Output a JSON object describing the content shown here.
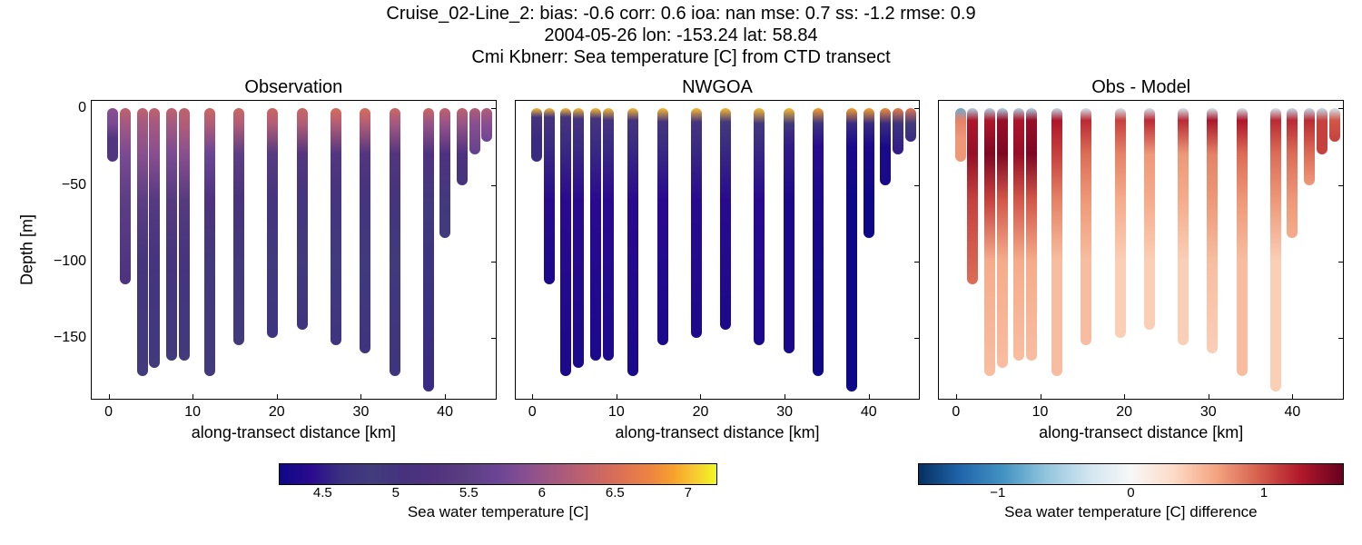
{
  "title": {
    "line1": "Cruise_02-Line_2: bias: -0.6  corr: 0.6  ioa: nan  mse: 0.7  ss: -1.2  rmse: 0.9",
    "line2": "2004-05-26 lon: -153.24 lat: 58.84",
    "line3": "Cmi Kbnerr: Sea temperature [C] from CTD transect",
    "fontsize": 20,
    "color": "#000000"
  },
  "ylabel": "Depth [m]",
  "xlabel": "along-transect distance [km]",
  "label_fontsize": 18,
  "tick_fontsize": 16,
  "xlim": [
    -2,
    46
  ],
  "ylim": [
    -190,
    5
  ],
  "xticks": [
    0,
    10,
    20,
    30,
    40
  ],
  "yticks": [
    0,
    -50,
    -100,
    -150
  ],
  "background_color": "#ffffff",
  "border_color": "#000000",
  "panels": [
    {
      "title": "Observation",
      "show_yticks": true,
      "data": "obs",
      "cmap": "viridis"
    },
    {
      "title": "NWGOA",
      "show_yticks": false,
      "data": "model",
      "cmap": "viridis"
    },
    {
      "title": "Obs - Model",
      "show_yticks": false,
      "data": "diff",
      "cmap": "rdbu"
    }
  ],
  "viridis": {
    "min": 4.2,
    "max": 7.2,
    "stops": [
      [
        0.0,
        "#0d0887"
      ],
      [
        0.07,
        "#2a0a8f"
      ],
      [
        0.14,
        "#3b2f80"
      ],
      [
        0.21,
        "#423c7d"
      ],
      [
        0.28,
        "#46327e"
      ],
      [
        0.35,
        "#50327f"
      ],
      [
        0.42,
        "#593d80"
      ],
      [
        0.5,
        "#6b4596"
      ],
      [
        0.57,
        "#8b508f"
      ],
      [
        0.64,
        "#a85a7e"
      ],
      [
        0.71,
        "#c3636a"
      ],
      [
        0.78,
        "#dc7055"
      ],
      [
        0.85,
        "#ee8440"
      ],
      [
        0.9,
        "#f7a02d"
      ],
      [
        0.95,
        "#f8c932"
      ],
      [
        1.0,
        "#f0f921"
      ]
    ],
    "ticks": [
      4.5,
      5.0,
      5.5,
      6.0,
      6.5,
      7.0
    ],
    "label": "Sea water temperature [C]"
  },
  "rdbu": {
    "min": -1.6,
    "max": 1.6,
    "stops": [
      [
        0.0,
        "#053061"
      ],
      [
        0.1,
        "#2166ac"
      ],
      [
        0.2,
        "#4393c3"
      ],
      [
        0.3,
        "#92c5de"
      ],
      [
        0.4,
        "#d1e5f0"
      ],
      [
        0.5,
        "#f7f7f7"
      ],
      [
        0.6,
        "#fddbc7"
      ],
      [
        0.7,
        "#f4a582"
      ],
      [
        0.8,
        "#d6604d"
      ],
      [
        0.9,
        "#b2182b"
      ],
      [
        1.0,
        "#67001f"
      ]
    ],
    "ticks": [
      -1,
      0,
      1
    ],
    "label": "Sea water temperature [C] difference"
  },
  "profiles": [
    {
      "x": 0.5,
      "depth": 35,
      "obs": [
        [
          0,
          5.9
        ],
        [
          10,
          5.8
        ],
        [
          20,
          5.3
        ],
        [
          35,
          5.3
        ]
      ],
      "model": [
        [
          0,
          7.0
        ],
        [
          6,
          5.0
        ],
        [
          20,
          4.6
        ],
        [
          35,
          4.6
        ]
      ],
      "diff": [
        [
          0,
          -0.8
        ],
        [
          8,
          0.8
        ],
        [
          20,
          0.7
        ],
        [
          35,
          0.7
        ]
      ]
    },
    {
      "x": 2.0,
      "depth": 115,
      "obs": [
        [
          0,
          6.3
        ],
        [
          10,
          6.1
        ],
        [
          30,
          5.8
        ],
        [
          60,
          5.5
        ],
        [
          115,
          5.2
        ]
      ],
      "model": [
        [
          0,
          7.0
        ],
        [
          6,
          5.0
        ],
        [
          25,
          4.6
        ],
        [
          60,
          4.4
        ],
        [
          115,
          4.3
        ]
      ],
      "diff": [
        [
          0,
          -0.5
        ],
        [
          8,
          1.3
        ],
        [
          30,
          1.4
        ],
        [
          60,
          1.1
        ],
        [
          115,
          0.9
        ]
      ]
    },
    {
      "x": 4.0,
      "depth": 175,
      "obs": [
        [
          0,
          6.3
        ],
        [
          10,
          6.1
        ],
        [
          30,
          5.9
        ],
        [
          60,
          5.5
        ],
        [
          100,
          5.0
        ],
        [
          175,
          4.8
        ]
      ],
      "model": [
        [
          0,
          7.0
        ],
        [
          6,
          5.0
        ],
        [
          25,
          4.6
        ],
        [
          60,
          4.4
        ],
        [
          175,
          4.3
        ]
      ],
      "diff": [
        [
          0,
          -0.5
        ],
        [
          8,
          1.3
        ],
        [
          30,
          1.5
        ],
        [
          60,
          1.1
        ],
        [
          100,
          0.6
        ],
        [
          175,
          0.5
        ]
      ]
    },
    {
      "x": 5.5,
      "depth": 170,
      "obs": [
        [
          0,
          6.3
        ],
        [
          10,
          6.1
        ],
        [
          30,
          5.9
        ],
        [
          60,
          5.4
        ],
        [
          100,
          5.0
        ],
        [
          170,
          4.8
        ]
      ],
      "model": [
        [
          0,
          7.0
        ],
        [
          7,
          5.0
        ],
        [
          25,
          4.6
        ],
        [
          60,
          4.4
        ],
        [
          170,
          4.3
        ]
      ],
      "diff": [
        [
          0,
          -0.5
        ],
        [
          8,
          1.4
        ],
        [
          30,
          1.5
        ],
        [
          60,
          1.0
        ],
        [
          100,
          0.6
        ],
        [
          170,
          0.5
        ]
      ]
    },
    {
      "x": 7.5,
      "depth": 165,
      "obs": [
        [
          0,
          6.3
        ],
        [
          10,
          6.1
        ],
        [
          30,
          5.8
        ],
        [
          60,
          5.4
        ],
        [
          100,
          5.0
        ],
        [
          165,
          4.8
        ]
      ],
      "model": [
        [
          0,
          7.0
        ],
        [
          7,
          5.0
        ],
        [
          25,
          4.6
        ],
        [
          60,
          4.4
        ],
        [
          165,
          4.3
        ]
      ],
      "diff": [
        [
          0,
          -0.5
        ],
        [
          8,
          1.3
        ],
        [
          30,
          1.4
        ],
        [
          60,
          1.0
        ],
        [
          100,
          0.6
        ],
        [
          165,
          0.5
        ]
      ]
    },
    {
      "x": 9.0,
      "depth": 165,
      "obs": [
        [
          0,
          6.3
        ],
        [
          10,
          6.2
        ],
        [
          30,
          5.9
        ],
        [
          60,
          5.4
        ],
        [
          100,
          5.0
        ],
        [
          165,
          4.8
        ]
      ],
      "model": [
        [
          0,
          7.0
        ],
        [
          8,
          5.0
        ],
        [
          25,
          4.6
        ],
        [
          60,
          4.4
        ],
        [
          165,
          4.3
        ]
      ],
      "diff": [
        [
          0,
          -0.5
        ],
        [
          8,
          1.4
        ],
        [
          30,
          1.5
        ],
        [
          60,
          1.0
        ],
        [
          100,
          0.6
        ],
        [
          165,
          0.5
        ]
      ]
    },
    {
      "x": 12.0,
      "depth": 175,
      "obs": [
        [
          0,
          6.4
        ],
        [
          10,
          6.2
        ],
        [
          30,
          5.7
        ],
        [
          60,
          5.2
        ],
        [
          100,
          4.9
        ],
        [
          175,
          4.8
        ]
      ],
      "model": [
        [
          0,
          7.0
        ],
        [
          8,
          5.0
        ],
        [
          25,
          4.6
        ],
        [
          60,
          4.4
        ],
        [
          175,
          4.3
        ]
      ],
      "diff": [
        [
          0,
          -0.4
        ],
        [
          8,
          1.3
        ],
        [
          30,
          1.1
        ],
        [
          60,
          0.8
        ],
        [
          100,
          0.5
        ],
        [
          175,
          0.5
        ]
      ]
    },
    {
      "x": 15.5,
      "depth": 155,
      "obs": [
        [
          0,
          6.4
        ],
        [
          10,
          6.2
        ],
        [
          30,
          5.5
        ],
        [
          60,
          5.1
        ],
        [
          100,
          4.9
        ],
        [
          155,
          4.8
        ]
      ],
      "model": [
        [
          0,
          7.0
        ],
        [
          9,
          5.0
        ],
        [
          25,
          4.6
        ],
        [
          60,
          4.4
        ],
        [
          155,
          4.3
        ]
      ],
      "diff": [
        [
          0,
          -0.3
        ],
        [
          8,
          1.2
        ],
        [
          30,
          0.9
        ],
        [
          60,
          0.7
        ],
        [
          100,
          0.5
        ],
        [
          155,
          0.5
        ]
      ]
    },
    {
      "x": 19.5,
      "depth": 150,
      "obs": [
        [
          0,
          6.4
        ],
        [
          10,
          6.2
        ],
        [
          30,
          5.4
        ],
        [
          60,
          5.0
        ],
        [
          100,
          4.8
        ],
        [
          150,
          4.7
        ]
      ],
      "model": [
        [
          0,
          7.0
        ],
        [
          9,
          5.0
        ],
        [
          25,
          4.6
        ],
        [
          60,
          4.4
        ],
        [
          150,
          4.3
        ]
      ],
      "diff": [
        [
          0,
          -0.3
        ],
        [
          8,
          1.1
        ],
        [
          30,
          0.8
        ],
        [
          60,
          0.6
        ],
        [
          100,
          0.4
        ],
        [
          150,
          0.4
        ]
      ]
    },
    {
      "x": 23.0,
      "depth": 145,
      "obs": [
        [
          0,
          6.4
        ],
        [
          10,
          6.2
        ],
        [
          30,
          5.3
        ],
        [
          60,
          5.0
        ],
        [
          100,
          4.8
        ],
        [
          145,
          4.7
        ]
      ],
      "model": [
        [
          0,
          7.0
        ],
        [
          9,
          4.9
        ],
        [
          25,
          4.6
        ],
        [
          60,
          4.4
        ],
        [
          145,
          4.3
        ]
      ],
      "diff": [
        [
          0,
          -0.3
        ],
        [
          8,
          1.2
        ],
        [
          30,
          0.7
        ],
        [
          60,
          0.6
        ],
        [
          100,
          0.4
        ],
        [
          145,
          0.4
        ]
      ]
    },
    {
      "x": 27.0,
      "depth": 155,
      "obs": [
        [
          0,
          6.5
        ],
        [
          10,
          6.2
        ],
        [
          30,
          5.3
        ],
        [
          60,
          5.0
        ],
        [
          100,
          4.8
        ],
        [
          155,
          4.7
        ]
      ],
      "model": [
        [
          0,
          7.0
        ],
        [
          10,
          4.9
        ],
        [
          25,
          4.6
        ],
        [
          60,
          4.4
        ],
        [
          155,
          4.3
        ]
      ],
      "diff": [
        [
          0,
          -0.3
        ],
        [
          8,
          1.2
        ],
        [
          30,
          0.7
        ],
        [
          60,
          0.6
        ],
        [
          100,
          0.4
        ],
        [
          155,
          0.4
        ]
      ]
    },
    {
      "x": 30.5,
      "depth": 160,
      "obs": [
        [
          0,
          6.5
        ],
        [
          10,
          6.2
        ],
        [
          30,
          5.3
        ],
        [
          60,
          5.0
        ],
        [
          100,
          4.8
        ],
        [
          160,
          4.7
        ]
      ],
      "model": [
        [
          0,
          7.0
        ],
        [
          10,
          4.8
        ],
        [
          25,
          4.5
        ],
        [
          60,
          4.3
        ],
        [
          160,
          4.3
        ]
      ],
      "diff": [
        [
          0,
          -0.3
        ],
        [
          8,
          1.3
        ],
        [
          30,
          0.8
        ],
        [
          60,
          0.7
        ],
        [
          100,
          0.5
        ],
        [
          160,
          0.4
        ]
      ]
    },
    {
      "x": 34.0,
      "depth": 175,
      "obs": [
        [
          0,
          6.4
        ],
        [
          10,
          6.1
        ],
        [
          30,
          5.3
        ],
        [
          60,
          5.0
        ],
        [
          100,
          4.8
        ],
        [
          175,
          4.7
        ]
      ],
      "model": [
        [
          0,
          6.9
        ],
        [
          10,
          4.7
        ],
        [
          25,
          4.4
        ],
        [
          60,
          4.3
        ],
        [
          175,
          4.2
        ]
      ],
      "diff": [
        [
          0,
          -0.3
        ],
        [
          8,
          1.3
        ],
        [
          30,
          0.9
        ],
        [
          60,
          0.7
        ],
        [
          100,
          0.5
        ],
        [
          175,
          0.5
        ]
      ]
    },
    {
      "x": 38.0,
      "depth": 185,
      "obs": [
        [
          0,
          6.4
        ],
        [
          10,
          6.0
        ],
        [
          30,
          5.2
        ],
        [
          60,
          4.9
        ],
        [
          100,
          4.7
        ],
        [
          185,
          4.6
        ]
      ],
      "model": [
        [
          0,
          6.9
        ],
        [
          10,
          4.6
        ],
        [
          25,
          4.3
        ],
        [
          60,
          4.2
        ],
        [
          185,
          4.2
        ]
      ],
      "diff": [
        [
          0,
          -0.3
        ],
        [
          8,
          1.2
        ],
        [
          30,
          0.9
        ],
        [
          60,
          0.7
        ],
        [
          100,
          0.4
        ],
        [
          185,
          0.4
        ]
      ]
    },
    {
      "x": 40.0,
      "depth": 85,
      "obs": [
        [
          0,
          6.3
        ],
        [
          10,
          6.0
        ],
        [
          30,
          5.2
        ],
        [
          60,
          4.9
        ],
        [
          85,
          4.8
        ]
      ],
      "model": [
        [
          0,
          6.9
        ],
        [
          10,
          4.6
        ],
        [
          25,
          4.3
        ],
        [
          60,
          4.2
        ],
        [
          85,
          4.2
        ]
      ],
      "diff": [
        [
          0,
          -0.4
        ],
        [
          8,
          1.2
        ],
        [
          30,
          0.9
        ],
        [
          60,
          0.7
        ],
        [
          85,
          0.6
        ]
      ]
    },
    {
      "x": 42.0,
      "depth": 50,
      "obs": [
        [
          0,
          6.3
        ],
        [
          10,
          6.0
        ],
        [
          30,
          5.2
        ],
        [
          50,
          5.0
        ]
      ],
      "model": [
        [
          0,
          6.8
        ],
        [
          10,
          4.6
        ],
        [
          25,
          4.3
        ],
        [
          50,
          4.3
        ]
      ],
      "diff": [
        [
          0,
          -0.4
        ],
        [
          8,
          1.2
        ],
        [
          30,
          0.9
        ],
        [
          50,
          0.7
        ]
      ]
    },
    {
      "x": 43.5,
      "depth": 30,
      "obs": [
        [
          0,
          6.2
        ],
        [
          10,
          5.9
        ],
        [
          30,
          5.6
        ]
      ],
      "model": [
        [
          0,
          6.7
        ],
        [
          10,
          4.7
        ],
        [
          30,
          4.5
        ]
      ],
      "diff": [
        [
          0,
          -0.4
        ],
        [
          8,
          1.1
        ],
        [
          30,
          1.1
        ]
      ]
    },
    {
      "x": 45.0,
      "depth": 22,
      "obs": [
        [
          0,
          6.2
        ],
        [
          10,
          5.9
        ],
        [
          22,
          5.7
        ]
      ],
      "model": [
        [
          0,
          6.6
        ],
        [
          10,
          4.8
        ],
        [
          22,
          4.6
        ]
      ],
      "diff": [
        [
          0,
          -0.3
        ],
        [
          8,
          1.0
        ],
        [
          22,
          1.1
        ]
      ]
    }
  ],
  "colorbar_layout": {
    "left_cbar": {
      "left_pct": 15,
      "width_pct": 35
    },
    "right_cbar": {
      "left_pct": 66,
      "width_pct": 34
    }
  }
}
